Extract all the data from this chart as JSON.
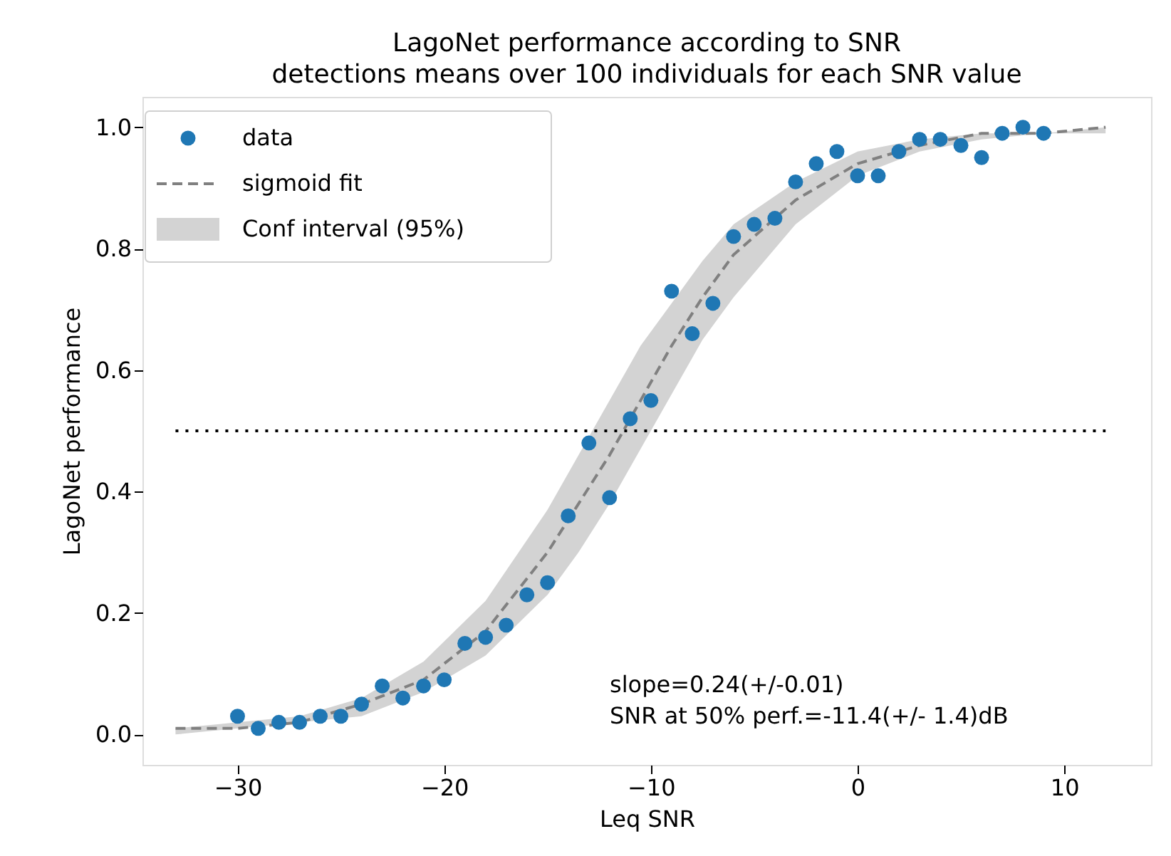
{
  "chart_data": {
    "type": "scatter",
    "title": "LagoNet performance according to SNR",
    "subtitle": "detections means over 100 individuals for each SNR value",
    "xlabel": "Leq SNR",
    "ylabel": "LagoNet performance",
    "xlim": [
      -34.6,
      14.2
    ],
    "ylim": [
      -0.05,
      1.05
    ],
    "xticks": [
      -30,
      -20,
      -10,
      0,
      10
    ],
    "yticks": [
      {
        "value": 0,
        "label": "0.0"
      },
      0.2,
      0.4,
      0.6,
      0.8,
      {
        "value": 1,
        "label": "1.0"
      }
    ],
    "grid": false,
    "legend": "top left",
    "annotations": [
      "slope=0.24(+/-0.01)",
      "SNR at 50% perf.=-11.4(+/- 1.4)dB"
    ],
    "series": [
      {
        "name": "sigmoid fit",
        "type": "line",
        "line_style": "dashed",
        "marker": "none",
        "color": "#808080",
        "x": [
          -33,
          -30,
          -27,
          -24,
          -21,
          -18,
          -15,
          -13.5,
          -12,
          -10.5,
          -9,
          -7.5,
          -6,
          -3,
          0,
          3,
          6,
          9,
          12
        ],
        "values": [
          0.01,
          0.01,
          0.02,
          0.05,
          0.09,
          0.17,
          0.3,
          0.38,
          0.46,
          0.55,
          0.64,
          0.72,
          0.79,
          0.88,
          0.94,
          0.97,
          0.99,
          0.99,
          1.0
        ],
        "lower": [
          0.0,
          0.01,
          0.02,
          0.03,
          0.07,
          0.13,
          0.23,
          0.3,
          0.38,
          0.47,
          0.56,
          0.65,
          0.72,
          0.84,
          0.92,
          0.96,
          0.98,
          0.99,
          0.99
        ],
        "upper": [
          0.01,
          0.02,
          0.03,
          0.06,
          0.12,
          0.22,
          0.37,
          0.46,
          0.55,
          0.64,
          0.71,
          0.78,
          0.84,
          0.91,
          0.96,
          0.98,
          0.99,
          0.99,
          1.0
        ]
      },
      {
        "name": "Conf interval (95%)",
        "type": "area",
        "color": "#d3d3d3"
      },
      {
        "type": "line",
        "line_style": "dotted",
        "marker": "none",
        "color": "#000000",
        "x": [
          -33,
          12
        ],
        "values": [
          0.5,
          0.5
        ]
      },
      {
        "name": "data",
        "marker": "circle",
        "color": "#1f77b4",
        "x": [
          -30,
          -29,
          -28,
          -27,
          -26,
          -25,
          -24,
          -23,
          -22,
          -21,
          -20,
          -19,
          -18,
          -17,
          -16,
          -15,
          -14,
          -13,
          -12,
          -11,
          -10,
          -9,
          -8,
          -7,
          -6,
          -5,
          -4,
          -3,
          -2,
          -1,
          0,
          1,
          2,
          3,
          4,
          5,
          6,
          7,
          8,
          9
        ],
        "values": [
          0.03,
          0.01,
          0.02,
          0.02,
          0.03,
          0.03,
          0.05,
          0.08,
          0.06,
          0.08,
          0.09,
          0.15,
          0.16,
          0.18,
          0.23,
          0.25,
          0.36,
          0.48,
          0.39,
          0.52,
          0.55,
          0.73,
          0.66,
          0.71,
          0.82,
          0.84,
          0.85,
          0.91,
          0.94,
          0.96,
          0.92,
          0.92,
          0.96,
          0.98,
          0.98,
          0.97,
          0.95,
          0.99,
          1.0,
          0.99
        ]
      }
    ]
  }
}
